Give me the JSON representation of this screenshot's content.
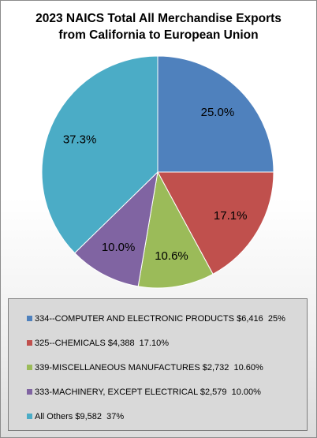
{
  "chart_data": {
    "type": "pie",
    "title": "2023 NAICS Total All Merchandise Exports from California to European Union",
    "title_lines": [
      "2023 NAICS Total All Merchandise Exports",
      "from California to European Union"
    ],
    "slices": [
      {
        "label": "334--COMPUTER AND ELECTRONIC PRODUCTS $6,416  25%",
        "value": 25.0,
        "data_label": "25.0%",
        "color": "#4f81bd"
      },
      {
        "label": "325--CHEMICALS $4,388  17.10%",
        "value": 17.1,
        "data_label": "17.1%",
        "color": "#c0504d"
      },
      {
        "label": "339-MISCELLANEOUS MANUFACTURES $2,732  10.60%",
        "value": 10.6,
        "data_label": "10.6%",
        "color": "#9bbb59"
      },
      {
        "label": "333-MACHINERY, EXCEPT ELECTRICAL $2,579  10.00%",
        "value": 10.0,
        "data_label": "10.0%",
        "color": "#8064a2"
      },
      {
        "label": "All Others $9,582  37%",
        "value": 37.3,
        "data_label": "37.3%",
        "color": "#4bacc6"
      }
    ],
    "legend_position": "bottom"
  }
}
